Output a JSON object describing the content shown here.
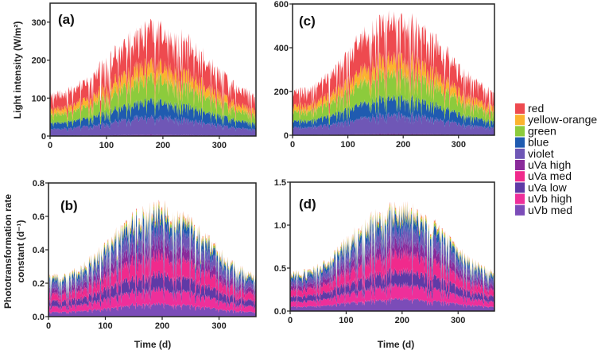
{
  "chart_data": {
    "type": "area",
    "stacked": true,
    "legend": {
      "placement": "right",
      "entries": [
        {
          "name": "red",
          "color": "#ee4a4f"
        },
        {
          "name": "yellow-orange",
          "color": "#fbb32e"
        },
        {
          "name": "green",
          "color": "#8ccb3c"
        },
        {
          "name": "blue",
          "color": "#1f5bb0"
        },
        {
          "name": "violet",
          "color": "#6f57b6"
        },
        {
          "name": "uVa high",
          "color": "#8a2a9a"
        },
        {
          "name": "uVa med",
          "color": "#f02a8c"
        },
        {
          "name": "uVa low",
          "color": "#5f3aa6"
        },
        {
          "name": "uVb high",
          "color": "#ee2f9a"
        },
        {
          "name": "uVb med",
          "color": "#7b4cb8"
        }
      ]
    },
    "shared_xlabel": "Time (d)",
    "panels": [
      {
        "id": "a",
        "label": "(a)",
        "ylabel": "Light intensity (W/m²)",
        "xlim": [
          0,
          365
        ],
        "ylim": [
          0,
          350
        ],
        "xticks": [
          "0",
          "100",
          "200",
          "300"
        ],
        "xtick_values": [
          0,
          100,
          200,
          300
        ],
        "yticks": [
          "0",
          "100",
          "200",
          "300"
        ],
        "ytick_values": [
          0,
          100,
          200,
          300
        ],
        "envelope_peak_day": 190,
        "envelope_min": 120,
        "envelope_max": 310,
        "stack_order_bottom_to_top": [
          "uVb med",
          "uVb high",
          "uVa low",
          "uVa med",
          "uVa high",
          "violet",
          "blue",
          "green",
          "yellow-orange",
          "red"
        ],
        "series_fraction_of_total": {
          "uVb med": 0.0,
          "uVb high": 0.0,
          "uVa low": 0.0,
          "uVa med": 0.0,
          "uVa high": 0.01,
          "violet": 0.17,
          "blue": 0.15,
          "green": 0.22,
          "yellow-orange": 0.13,
          "red": 0.32
        }
      },
      {
        "id": "c",
        "label": "(c)",
        "ylabel": "",
        "xlim": [
          0,
          365
        ],
        "ylim": [
          0,
          600
        ],
        "xticks": [
          "0",
          "100",
          "200",
          "300"
        ],
        "xtick_values": [
          0,
          100,
          200,
          300
        ],
        "yticks": [
          "0",
          "200",
          "400",
          "600"
        ],
        "ytick_values": [
          0,
          200,
          400,
          600
        ],
        "envelope_peak_day": 190,
        "envelope_min": 220,
        "envelope_max": 585,
        "stack_order_bottom_to_top": [
          "uVb med",
          "uVb high",
          "uVa low",
          "uVa med",
          "uVa high",
          "violet",
          "blue",
          "green",
          "yellow-orange",
          "red"
        ],
        "series_fraction_of_total": {
          "uVb med": 0.0,
          "uVb high": 0.0,
          "uVa low": 0.0,
          "uVa med": 0.0,
          "uVa high": 0.01,
          "violet": 0.17,
          "blue": 0.15,
          "green": 0.22,
          "yellow-orange": 0.13,
          "red": 0.32
        }
      },
      {
        "id": "b",
        "label": "(b)",
        "ylabel": "Phototransformation rate constant (d⁻¹)",
        "ylabel_lines": [
          "Phototransformation rate",
          "constant (d⁻¹)"
        ],
        "xlim": [
          0,
          365
        ],
        "ylim": [
          0,
          0.8
        ],
        "xticks": [
          "0",
          "100",
          "200",
          "300"
        ],
        "xtick_values": [
          0,
          100,
          200,
          300
        ],
        "yticks": [
          "0.0",
          "0.2",
          "0.4",
          "0.6",
          "0.8"
        ],
        "ytick_values": [
          0,
          0.2,
          0.4,
          0.6,
          0.8
        ],
        "envelope_peak_day": 195,
        "envelope_min": 0.26,
        "envelope_max": 0.7,
        "stack_order_bottom_to_top": [
          "uVb med",
          "uVb high",
          "uVa low",
          "uVa med",
          "uVa high",
          "violet",
          "blue",
          "green",
          "yellow-orange",
          "red"
        ],
        "series_fraction_of_total": {
          "uVb med": 0.12,
          "uVb high": 0.14,
          "uVa low": 0.14,
          "uVa med": 0.18,
          "uVa high": 0.12,
          "violet": 0.14,
          "blue": 0.1,
          "green": 0.03,
          "yellow-orange": 0.02,
          "red": 0.01
        }
      },
      {
        "id": "d",
        "label": "(d)",
        "ylabel": "",
        "xlim": [
          0,
          365
        ],
        "ylim": [
          0,
          1.5
        ],
        "xticks": [
          "0",
          "100",
          "200",
          "300"
        ],
        "xtick_values": [
          0,
          100,
          200,
          300
        ],
        "yticks": [
          "0.0",
          "0.5",
          "1.0",
          "1.5"
        ],
        "ytick_values": [
          0,
          0.5,
          1.0,
          1.5
        ],
        "envelope_peak_day": 195,
        "envelope_min": 0.48,
        "envelope_max": 1.3,
        "stack_order_bottom_to_top": [
          "uVb med",
          "uVb high",
          "uVa low",
          "uVa med",
          "uVa high",
          "violet",
          "blue",
          "green",
          "yellow-orange",
          "red"
        ],
        "series_fraction_of_total": {
          "uVb med": 0.12,
          "uVb high": 0.14,
          "uVa low": 0.14,
          "uVa med": 0.18,
          "uVa high": 0.12,
          "violet": 0.14,
          "blue": 0.1,
          "green": 0.03,
          "yellow-orange": 0.02,
          "red": 0.01
        }
      }
    ]
  }
}
